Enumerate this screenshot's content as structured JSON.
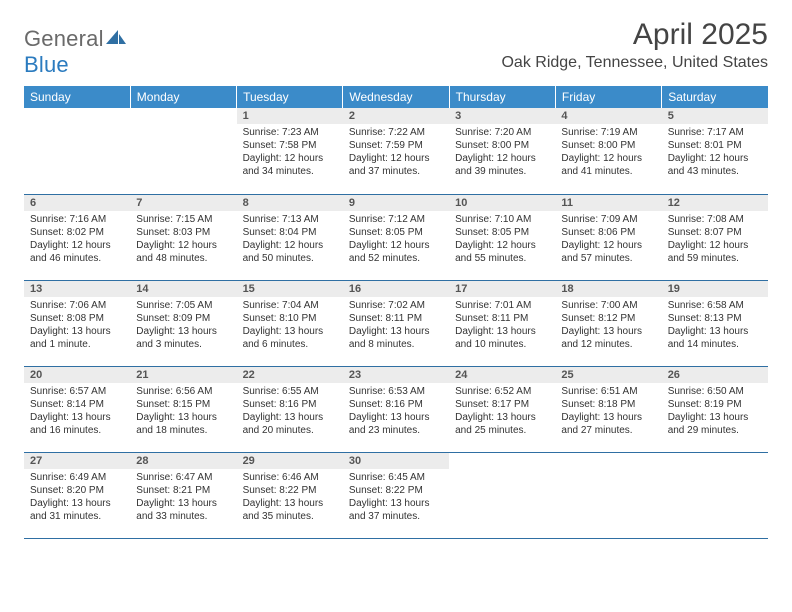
{
  "logo": {
    "gray": "General",
    "blue": "Blue"
  },
  "title": "April 2025",
  "location": "Oak Ridge, Tennessee, United States",
  "colors": {
    "headerBg": "#3b8bc9",
    "headerText": "#ffffff",
    "dayNumBg": "#ececec",
    "dayNumText": "#555555",
    "rowBorder": "#2f6fa3",
    "bodyBg": "#ffffff",
    "textColor": "#333333"
  },
  "typography": {
    "titleFontSize": 30,
    "locationFontSize": 16,
    "weekdayFontSize": 12,
    "dayNumFontSize": 11,
    "cellFontSize": 10
  },
  "weekdays": [
    "Sunday",
    "Monday",
    "Tuesday",
    "Wednesday",
    "Thursday",
    "Friday",
    "Saturday"
  ],
  "weeks": [
    [
      null,
      null,
      {
        "n": "1",
        "sr": "7:23 AM",
        "ss": "7:58 PM",
        "dl": "12 hours and 34 minutes."
      },
      {
        "n": "2",
        "sr": "7:22 AM",
        "ss": "7:59 PM",
        "dl": "12 hours and 37 minutes."
      },
      {
        "n": "3",
        "sr": "7:20 AM",
        "ss": "8:00 PM",
        "dl": "12 hours and 39 minutes."
      },
      {
        "n": "4",
        "sr": "7:19 AM",
        "ss": "8:00 PM",
        "dl": "12 hours and 41 minutes."
      },
      {
        "n": "5",
        "sr": "7:17 AM",
        "ss": "8:01 PM",
        "dl": "12 hours and 43 minutes."
      }
    ],
    [
      {
        "n": "6",
        "sr": "7:16 AM",
        "ss": "8:02 PM",
        "dl": "12 hours and 46 minutes."
      },
      {
        "n": "7",
        "sr": "7:15 AM",
        "ss": "8:03 PM",
        "dl": "12 hours and 48 minutes."
      },
      {
        "n": "8",
        "sr": "7:13 AM",
        "ss": "8:04 PM",
        "dl": "12 hours and 50 minutes."
      },
      {
        "n": "9",
        "sr": "7:12 AM",
        "ss": "8:05 PM",
        "dl": "12 hours and 52 minutes."
      },
      {
        "n": "10",
        "sr": "7:10 AM",
        "ss": "8:05 PM",
        "dl": "12 hours and 55 minutes."
      },
      {
        "n": "11",
        "sr": "7:09 AM",
        "ss": "8:06 PM",
        "dl": "12 hours and 57 minutes."
      },
      {
        "n": "12",
        "sr": "7:08 AM",
        "ss": "8:07 PM",
        "dl": "12 hours and 59 minutes."
      }
    ],
    [
      {
        "n": "13",
        "sr": "7:06 AM",
        "ss": "8:08 PM",
        "dl": "13 hours and 1 minute."
      },
      {
        "n": "14",
        "sr": "7:05 AM",
        "ss": "8:09 PM",
        "dl": "13 hours and 3 minutes."
      },
      {
        "n": "15",
        "sr": "7:04 AM",
        "ss": "8:10 PM",
        "dl": "13 hours and 6 minutes."
      },
      {
        "n": "16",
        "sr": "7:02 AM",
        "ss": "8:11 PM",
        "dl": "13 hours and 8 minutes."
      },
      {
        "n": "17",
        "sr": "7:01 AM",
        "ss": "8:11 PM",
        "dl": "13 hours and 10 minutes."
      },
      {
        "n": "18",
        "sr": "7:00 AM",
        "ss": "8:12 PM",
        "dl": "13 hours and 12 minutes."
      },
      {
        "n": "19",
        "sr": "6:58 AM",
        "ss": "8:13 PM",
        "dl": "13 hours and 14 minutes."
      }
    ],
    [
      {
        "n": "20",
        "sr": "6:57 AM",
        "ss": "8:14 PM",
        "dl": "13 hours and 16 minutes."
      },
      {
        "n": "21",
        "sr": "6:56 AM",
        "ss": "8:15 PM",
        "dl": "13 hours and 18 minutes."
      },
      {
        "n": "22",
        "sr": "6:55 AM",
        "ss": "8:16 PM",
        "dl": "13 hours and 20 minutes."
      },
      {
        "n": "23",
        "sr": "6:53 AM",
        "ss": "8:16 PM",
        "dl": "13 hours and 23 minutes."
      },
      {
        "n": "24",
        "sr": "6:52 AM",
        "ss": "8:17 PM",
        "dl": "13 hours and 25 minutes."
      },
      {
        "n": "25",
        "sr": "6:51 AM",
        "ss": "8:18 PM",
        "dl": "13 hours and 27 minutes."
      },
      {
        "n": "26",
        "sr": "6:50 AM",
        "ss": "8:19 PM",
        "dl": "13 hours and 29 minutes."
      }
    ],
    [
      {
        "n": "27",
        "sr": "6:49 AM",
        "ss": "8:20 PM",
        "dl": "13 hours and 31 minutes."
      },
      {
        "n": "28",
        "sr": "6:47 AM",
        "ss": "8:21 PM",
        "dl": "13 hours and 33 minutes."
      },
      {
        "n": "29",
        "sr": "6:46 AM",
        "ss": "8:22 PM",
        "dl": "13 hours and 35 minutes."
      },
      {
        "n": "30",
        "sr": "6:45 AM",
        "ss": "8:22 PM",
        "dl": "13 hours and 37 minutes."
      },
      null,
      null,
      null
    ]
  ],
  "labels": {
    "sunrise": "Sunrise:",
    "sunset": "Sunset:",
    "daylight": "Daylight:"
  }
}
